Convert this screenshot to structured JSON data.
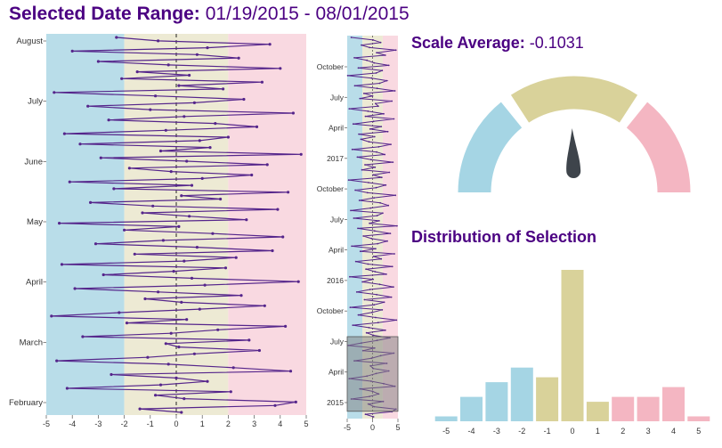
{
  "header": {
    "label": "Selected Date Range:",
    "range": "01/19/2015 - 08/01/2015"
  },
  "colors": {
    "accent_purple": "#4b0082",
    "axis_text": "#333333",
    "tick": "#555555"
  },
  "chart_data": [
    {
      "id": "timeline-detail",
      "type": "line",
      "orientation": "vertical-time",
      "xlim": [
        -5,
        5
      ],
      "x_ticks": [
        -5,
        -4,
        -3,
        -2,
        -1,
        0,
        1,
        2,
        3,
        4,
        5
      ],
      "y_axis_labels": [
        "August",
        "July",
        "June",
        "May",
        "April",
        "March",
        "February"
      ],
      "bands": [
        {
          "from": -5,
          "to": -2,
          "color": "#b9dde9"
        },
        {
          "from": -2,
          "to": 2,
          "color": "#edead4"
        },
        {
          "from": 2,
          "to": 5,
          "color": "#f9d9e1"
        }
      ],
      "zero_line": true,
      "line_color": "#55258b",
      "values": [
        0.2,
        -1.4,
        3.8,
        4.6,
        0.3,
        -0.8,
        2.1,
        -4.2,
        -0.6,
        1.2,
        0.0,
        -2.5,
        4.4,
        2.2,
        -0.3,
        -4.6,
        -1.1,
        0.7,
        3.2,
        0.1,
        -0.4,
        2.8,
        -3.6,
        -0.2,
        1.6,
        4.2,
        -1.9,
        0.4,
        -4.8,
        -2.2,
        0.9,
        3.4,
        0.2,
        -1.2,
        2.5,
        -0.7,
        -3.9,
        1.1,
        4.7,
        0.6,
        -2.8,
        -0.1,
        1.9,
        -4.4,
        0.3,
        2.3,
        -1.6,
        3.7,
        0.8,
        -3.1,
        -0.5,
        4.1,
        1.4,
        -2.0,
        0.1,
        -4.5,
        2.7,
        0.5,
        -1.3,
        3.9,
        -0.9,
        -3.3,
        1.7,
        0.2,
        4.3,
        -2.4,
        0.6,
        -4.1,
        1.0,
        2.9,
        -0.2,
        -1.8,
        3.5,
        0.4,
        -2.9,
        4.8,
        -0.6,
        1.3,
        -3.7,
        0.9,
        2.0,
        -4.3,
        -0.4,
        3.1,
        1.5,
        -2.6,
        0.3,
        4.5,
        -1.0,
        -3.4,
        0.7,
        2.6,
        -0.8,
        -4.7,
        1.8,
        0.1,
        3.3,
        -2.1,
        0.5,
        -1.5,
        4.0,
        -0.3,
        -3.0,
        2.4,
        0.8,
        -4.0,
        1.2,
        3.6,
        -0.7,
        -2.3
      ]
    },
    {
      "id": "timeline-overview",
      "type": "line",
      "orientation": "vertical-time",
      "xlim": [
        -5,
        5
      ],
      "x_ticks": [
        -5,
        0,
        5
      ],
      "y_axis_labels": [
        "October",
        "July",
        "April",
        "2017",
        "October",
        "July",
        "April",
        "2016",
        "October",
        "July",
        "April",
        "2015"
      ],
      "bands": [
        {
          "from": -5,
          "to": -2,
          "color": "#b9dde9"
        },
        {
          "from": -2,
          "to": 2,
          "color": "#edead4"
        },
        {
          "from": 2,
          "to": 5,
          "color": "#f9d9e1"
        }
      ],
      "zero_line": true,
      "line_color": "#55258b",
      "brush": {
        "top_frac": 0.786,
        "bottom_frac": 0.981,
        "fill": "rgba(128,128,128,0.5)",
        "stroke": "#555555"
      },
      "values": [
        0.2,
        -1.4,
        3.8,
        4.6,
        0.3,
        -0.8,
        2.1,
        -4.2,
        -0.6,
        1.2,
        0.0,
        -2.5,
        4.4,
        2.2,
        -0.3,
        -4.6,
        -1.1,
        0.7,
        3.2,
        0.1,
        -0.4,
        2.8,
        -3.6,
        -0.2,
        1.6,
        4.2,
        -1.9,
        0.4,
        -4.8,
        -2.2,
        0.9,
        3.4,
        0.2,
        -1.2,
        2.5,
        -0.7,
        -3.9,
        1.1,
        4.7,
        0.6,
        -2.8,
        -0.1,
        1.9,
        -4.4,
        0.3,
        2.3,
        -1.6,
        3.7,
        0.8,
        -3.1,
        -0.5,
        4.1,
        1.4,
        -2.0,
        0.1,
        -4.5,
        2.7,
        0.5,
        -1.3,
        3.9,
        -0.9,
        -3.3,
        1.7,
        0.2,
        4.3,
        -2.4,
        0.6,
        -4.1,
        1.0,
        2.9,
        -0.2,
        -1.8,
        3.5,
        0.4,
        -2.9,
        4.8,
        -0.6,
        1.3,
        -3.7,
        0.9,
        2.0,
        -4.3,
        -0.4,
        3.1,
        1.5,
        -2.6,
        0.3,
        4.5,
        -1.0,
        -3.4,
        0.7,
        2.6,
        -0.8,
        -4.7,
        1.8,
        0.1,
        3.3,
        -2.1,
        0.5,
        -1.5,
        4.0,
        -0.3,
        -3.0,
        2.4,
        0.8,
        -4.0,
        1.2,
        3.6,
        -0.7,
        -2.3,
        0.4,
        -2.7,
        3.0,
        -0.5,
        1.7,
        -3.8,
        0.2,
        4.2,
        -1.4,
        2.2,
        -0.9,
        -4.6,
        1.1,
        0.6,
        3.8,
        -2.5,
        0.0,
        -1.7,
        4.4,
        0.9,
        -3.5,
        1.4,
        2.8,
        -0.2,
        -4.9,
        0.7,
        1.9,
        -2.8,
        3.2,
        0.3,
        -1.1,
        -3.6,
        2.5,
        0.8,
        4.6,
        -0.6,
        -2.2,
        1.6,
        0.1,
        -4.2
      ]
    },
    {
      "id": "scale-average-gauge",
      "type": "gauge",
      "label": "Scale Average:",
      "value_text": "-0.1031",
      "value": -0.1031,
      "min": -5,
      "max": 5,
      "segments": [
        {
          "from": -5,
          "to": -2,
          "color": "#a5d5e4"
        },
        {
          "from": -2,
          "to": 2,
          "color": "#d9d29a"
        },
        {
          "from": 2,
          "to": 5,
          "color": "#f4b6c2"
        }
      ],
      "needle_color": "#3e444b"
    },
    {
      "id": "distribution",
      "type": "bar",
      "title": "Distribution of Selection",
      "categories": [
        -5,
        -4,
        -3,
        -2,
        -1,
        0,
        1,
        2,
        3,
        4,
        5
      ],
      "values": [
        1,
        5,
        8,
        11,
        9,
        31,
        4,
        5,
        5,
        7,
        1
      ],
      "bar_colors": [
        "#a5d5e4",
        "#a5d5e4",
        "#a5d5e4",
        "#a5d5e4",
        "#d9d29a",
        "#d9d29a",
        "#d9d29a",
        "#f4b6c2",
        "#f4b6c2",
        "#f4b6c2",
        "#f4b6c2"
      ],
      "ylim": [
        0,
        32
      ]
    }
  ]
}
